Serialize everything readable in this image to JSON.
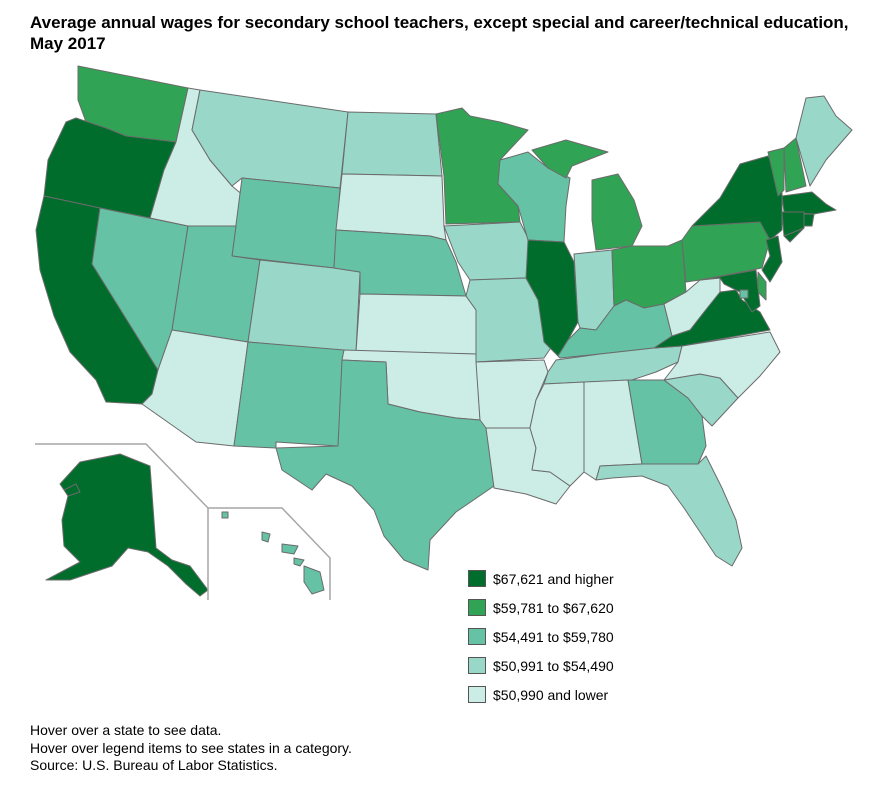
{
  "title_line1": "Average annual wages for secondary school teachers, except special and career/technical education,",
  "title_line2": "May 2017",
  "colors": {
    "c1": "#006d2c",
    "c2": "#31a354",
    "c3": "#66c2a4",
    "c4": "#99d8c9",
    "c5": "#ccece6"
  },
  "legend": [
    {
      "label": "$67,621 and higher",
      "color": "#006d2c"
    },
    {
      "label": "$59,781 to $67,620",
      "color": "#31a354"
    },
    {
      "label": "$54,491 to $59,780",
      "color": "#66c2a4"
    },
    {
      "label": "$50,991 to $54,490",
      "color": "#99d8c9"
    },
    {
      "label": "$50,990 and lower",
      "color": "#ccece6"
    }
  ],
  "footer": {
    "line1": "Hover over a state to see data.",
    "line2": "Hover over legend items to see states in a category.",
    "line3": "Source: U.S. Bureau of Labor Statistics."
  },
  "state_categories": {
    "WA": 2,
    "OR": 1,
    "CA": 1,
    "NV": 3,
    "ID": 5,
    "MT": 4,
    "WY": 3,
    "UT": 3,
    "AZ": 5,
    "CO": 4,
    "NM": 3,
    "ND": 4,
    "SD": 5,
    "NE": 3,
    "KS": 5,
    "OK": 5,
    "TX": 3,
    "MN": 2,
    "IA": 4,
    "MO": 4,
    "AR": 5,
    "LA": 5,
    "WI": 3,
    "IL": 1,
    "MI": 2,
    "IN": 4,
    "OH": 2,
    "KY": 3,
    "TN": 4,
    "MS": 5,
    "AL": 5,
    "GA": 3,
    "FL": 4,
    "SC": 4,
    "NC": 5,
    "VA": 1,
    "WV": 5,
    "PA": 2,
    "NY": 1,
    "VT": 2,
    "NH": 2,
    "ME": 4,
    "MA": 1,
    "RI": 1,
    "CT": 1,
    "NJ": 1,
    "DE": 2,
    "MD": 1,
    "DC": 3,
    "AK": 1,
    "HI": 3
  }
}
